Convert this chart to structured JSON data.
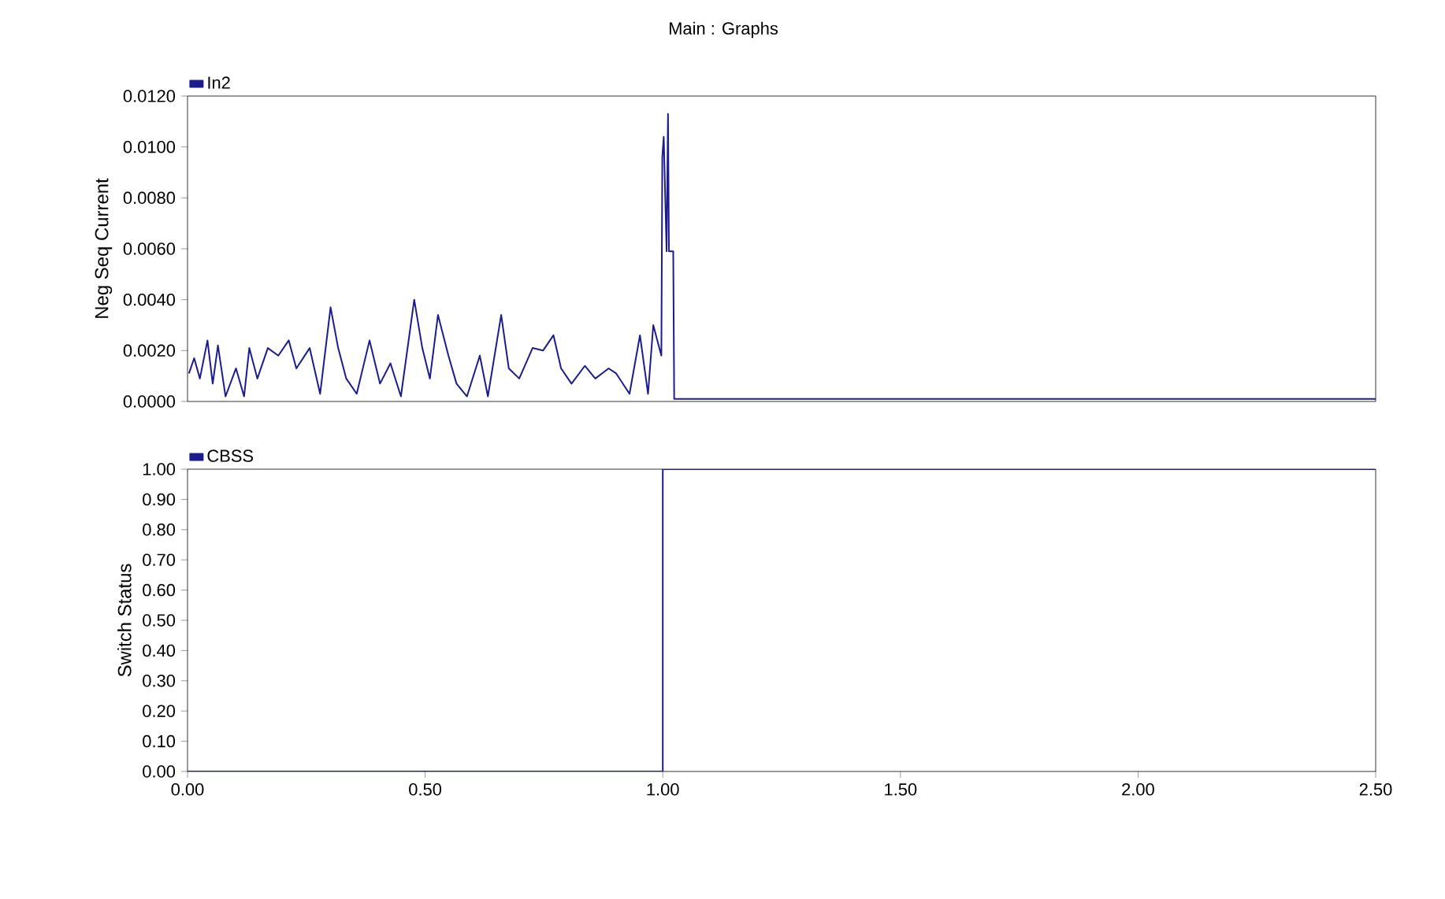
{
  "chart_data": [
    {
      "type": "line",
      "title": "Main : Graphs",
      "ylabel": "Neg Seq Current",
      "legend": "top left",
      "tick_labels": "y",
      "xlim": [
        0,
        2.5
      ],
      "ylim": [
        0,
        0.012
      ],
      "yticks": [
        {
          "value": 0,
          "label": "0.0000"
        },
        {
          "value": 0.002,
          "label": "0.0020"
        },
        {
          "value": 0.004,
          "label": "0.0040"
        },
        {
          "value": 0.006,
          "label": "0.0060"
        },
        {
          "value": 0.008,
          "label": "0.0080"
        },
        {
          "value": 0.01,
          "label": "0.0100"
        },
        {
          "value": 0.012,
          "label": "0.0120"
        }
      ],
      "series": [
        {
          "name": "In2",
          "color": "#1c1c8f",
          "x": [
            0.003,
            0.014,
            0.026,
            0.042,
            0.053,
            0.064,
            0.08,
            0.102,
            0.119,
            0.13,
            0.147,
            0.169,
            0.191,
            0.213,
            0.229,
            0.257,
            0.279,
            0.301,
            0.317,
            0.334,
            0.356,
            0.383,
            0.405,
            0.427,
            0.449,
            0.477,
            0.494,
            0.51,
            0.527,
            0.549,
            0.566,
            0.588,
            0.615,
            0.632,
            0.66,
            0.676,
            0.698,
            0.726,
            0.748,
            0.77,
            0.786,
            0.808,
            0.836,
            0.858,
            0.886,
            0.902,
            0.93,
            0.952,
            0.969,
            0.98,
            0.997,
            0.999,
            1.002,
            1.008,
            1.011,
            1.013,
            1.022,
            1.024,
            2.5
          ],
          "values": [
            0.0011,
            0.0017,
            0.0009,
            0.0024,
            0.0007,
            0.0022,
            0.0002,
            0.0013,
            0.0002,
            0.0021,
            0.0009,
            0.0021,
            0.0018,
            0.0024,
            0.0013,
            0.0021,
            0.0003,
            0.0037,
            0.0021,
            0.0009,
            0.0003,
            0.0024,
            0.0007,
            0.0015,
            0.0002,
            0.004,
            0.0021,
            0.0009,
            0.0034,
            0.0018,
            0.0007,
            0.0002,
            0.0018,
            0.0002,
            0.0034,
            0.0013,
            0.0009,
            0.0021,
            0.002,
            0.0026,
            0.0013,
            0.0007,
            0.0014,
            0.0009,
            0.0013,
            0.0011,
            0.0003,
            0.0026,
            0.0003,
            0.003,
            0.0018,
            0.0096,
            0.0104,
            0.0059,
            0.0113,
            0.0059,
            0.0059,
            0.0001,
            0.0001
          ]
        }
      ]
    },
    {
      "type": "step",
      "ylabel": "Switch Status",
      "legend": "top left",
      "xlim": [
        0,
        2.5
      ],
      "xticks": [
        {
          "value": 0,
          "label": "0.00"
        },
        {
          "value": 0.5,
          "label": "0.50"
        },
        {
          "value": 1,
          "label": "1.00"
        },
        {
          "value": 1.5,
          "label": "1.50"
        },
        {
          "value": 2,
          "label": "2.00"
        },
        {
          "value": 2.5,
          "label": "2.50"
        }
      ],
      "ylim": [
        0,
        1
      ],
      "yticks": [
        {
          "value": 0,
          "label": "0.00"
        },
        {
          "value": 0.1,
          "label": "0.10"
        },
        {
          "value": 0.2,
          "label": "0.20"
        },
        {
          "value": 0.3,
          "label": "0.30"
        },
        {
          "value": 0.4,
          "label": "0.40"
        },
        {
          "value": 0.5,
          "label": "0.50"
        },
        {
          "value": 0.6,
          "label": "0.60"
        },
        {
          "value": 0.7,
          "label": "0.70"
        },
        {
          "value": 0.8,
          "label": "0.80"
        },
        {
          "value": 0.9,
          "label": "0.90"
        },
        {
          "value": 1,
          "label": "1.00"
        }
      ],
      "series": [
        {
          "name": "CBSS",
          "color": "#1c1c8f",
          "x": [
            0,
            1.0,
            2.5
          ],
          "values": [
            0,
            1,
            1
          ]
        }
      ]
    }
  ]
}
